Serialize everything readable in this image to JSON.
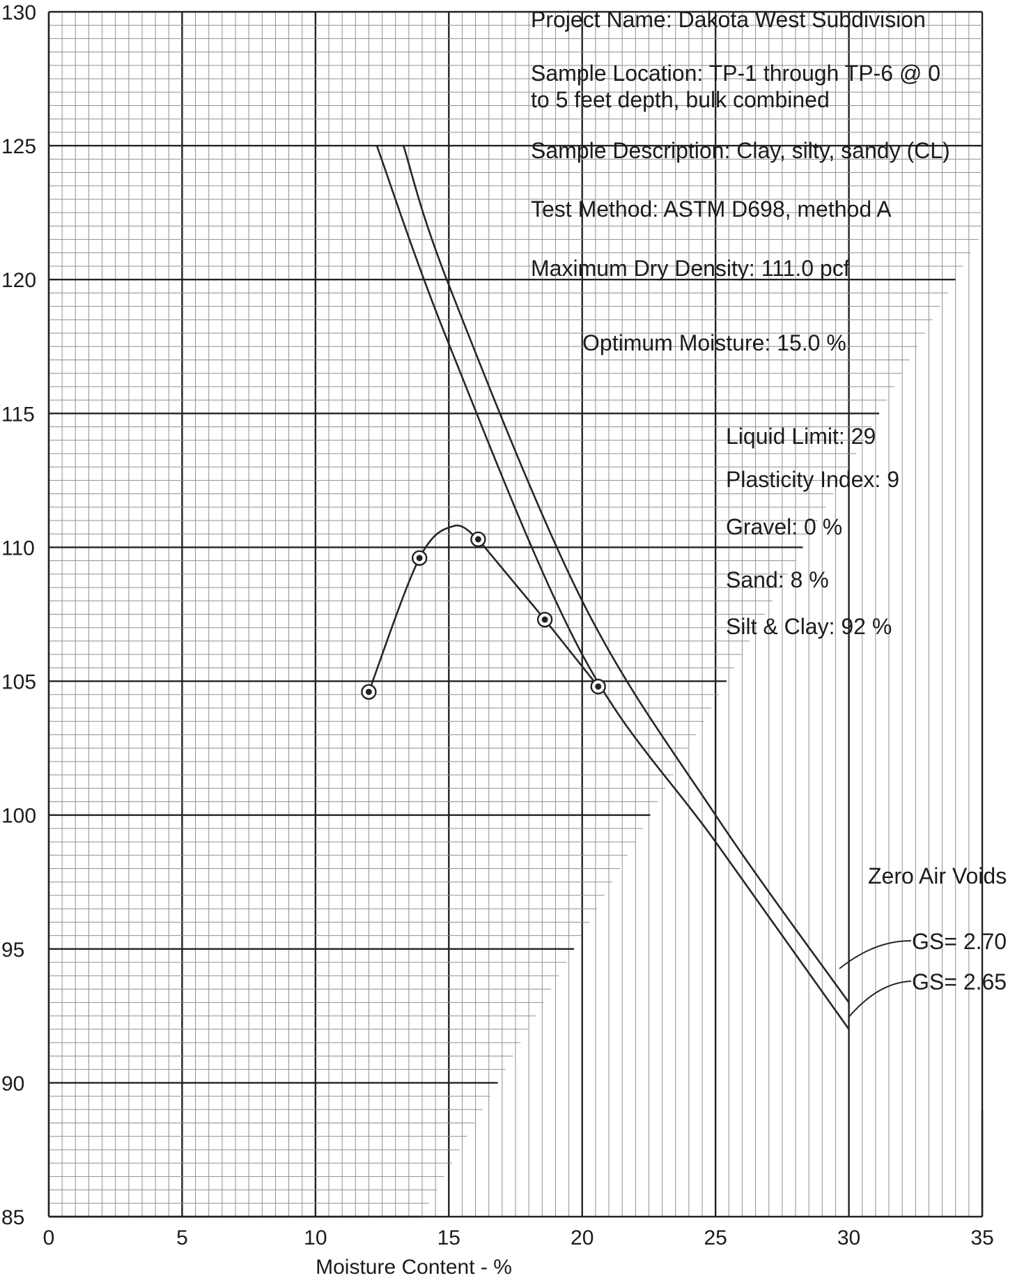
{
  "chart_data": {
    "type": "line",
    "title": "",
    "xlabel": "Moisture Content - %",
    "ylabel": "",
    "xlim": [
      0,
      35
    ],
    "ylim": [
      85,
      130
    ],
    "x_ticks": [
      "0",
      "5",
      "10",
      "15",
      "20",
      "25",
      "30",
      "35"
    ],
    "y_ticks": [
      "85",
      "90",
      "95",
      "100",
      "105",
      "110",
      "115",
      "120",
      "125",
      "130"
    ],
    "grid": true,
    "series": [
      {
        "name": "",
        "points": [
          {
            "x": 12.0,
            "y": 104.6
          },
          {
            "x": 13.9,
            "y": 109.6
          },
          {
            "x": 16.1,
            "y": 110.3
          },
          {
            "x": 18.6,
            "y": 107.3
          },
          {
            "x": 20.6,
            "y": 104.8
          }
        ]
      },
      {
        "name": "GS= 2.65",
        "points": [
          {
            "x": 12.3,
            "y": 125.0
          },
          {
            "x": 15.0,
            "y": 117.6
          },
          {
            "x": 20.0,
            "y": 106.0
          },
          {
            "x": 25.0,
            "y": 99.0
          },
          {
            "x": 30.0,
            "y": 92.0
          }
        ]
      },
      {
        "name": "GS= 2.70",
        "points": [
          {
            "x": 13.3,
            "y": 125.0
          },
          {
            "x": 15.0,
            "y": 119.8
          },
          {
            "x": 20.0,
            "y": 108.0
          },
          {
            "x": 25.0,
            "y": 100.0
          },
          {
            "x": 30.0,
            "y": 93.0
          }
        ]
      }
    ],
    "annotations": {
      "project": "Project Name: Dakota West Subdivision",
      "location_1": "Sample Location: TP-1 through TP-6 @ 0",
      "location_2": "to 5 feet depth, bulk combined",
      "description": "Sample Description: Clay, silty, sandy (CL)",
      "method": "Test Method:  ASTM D698, method A",
      "max_density": "Maximum Dry Density:  111.0 pcf",
      "opt_moisture": "Optimum Moisture:  15.0 %",
      "liquid_limit": "Liquid Limit: 29",
      "plasticity": "Plasticity Index: 9",
      "gravel": "Gravel:  0 %",
      "sand": "Sand:  8 %",
      "silt_clay": "Silt & Clay: 92 %",
      "zav": "Zero Air Voids",
      "gs_270": "GS= 2.70",
      "gs_265": "GS= 2.65"
    }
  }
}
